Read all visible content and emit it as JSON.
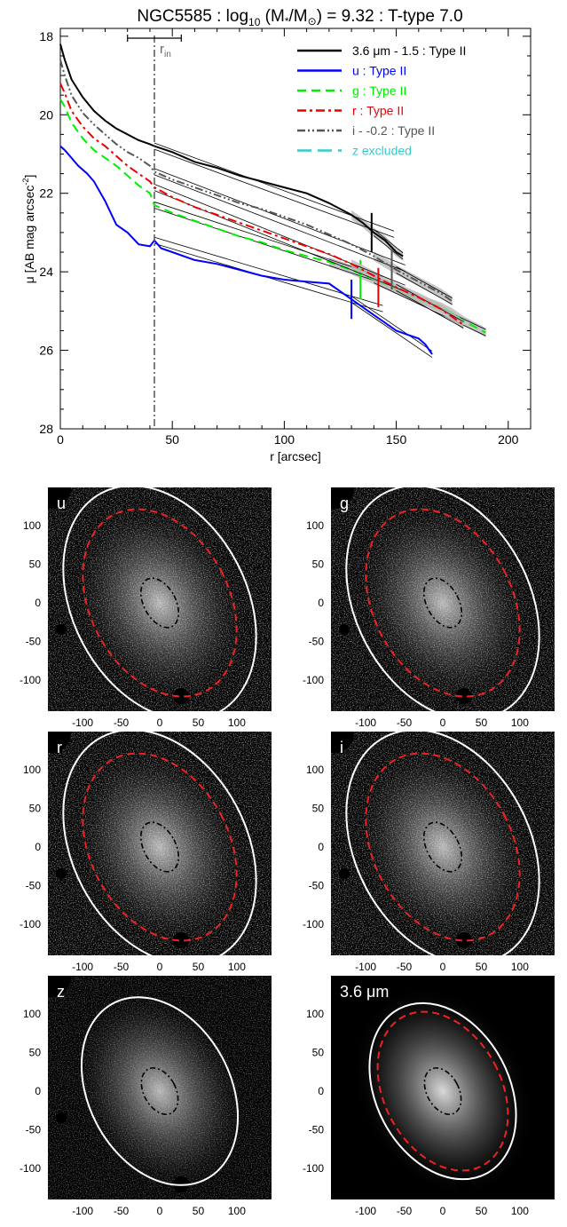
{
  "chart_data": [
    {
      "type": "line",
      "title": "NGC5585 : log",
      "title_sub": "10",
      "title_mid": " (M",
      "title_star": "*",
      "title_slash": "/M",
      "title_sun": "⊙",
      "title_tail": ") = 9.32 : T-type 7.0",
      "xlabel": "r [arcsec]",
      "ylabel": "μ [AB mag arcsec",
      "ylabel_sup": "-2",
      "ylabel_tail": "]",
      "xlim": [
        0,
        210
      ],
      "ylim": [
        28,
        17.8
      ],
      "y_inverted": true,
      "xticks": [
        0,
        50,
        100,
        150,
        200
      ],
      "yticks": [
        18,
        20,
        22,
        24,
        26,
        28
      ],
      "grid": false,
      "legend_position": "top-right",
      "r_in": 42,
      "r_in_label": "r",
      "r_in_sub": "in",
      "r_in_errbar": [
        30,
        54
      ],
      "series": [
        {
          "name": "3.6 μm - 1.5 : Type II",
          "color": "#000000",
          "dash": "solid",
          "break_r": 139,
          "x": [
            0,
            2,
            5,
            10,
            15,
            20,
            25,
            30,
            35,
            40,
            42,
            50,
            60,
            70,
            80,
            90,
            100,
            110,
            120,
            130,
            135,
            140,
            145,
            150,
            153
          ],
          "y": [
            18.2,
            18.6,
            19.1,
            19.55,
            19.9,
            20.15,
            20.35,
            20.5,
            20.65,
            20.75,
            20.8,
            20.95,
            21.2,
            21.35,
            21.55,
            21.7,
            21.85,
            22.0,
            22.25,
            22.55,
            22.75,
            23.0,
            23.2,
            23.5,
            23.6
          ]
        },
        {
          "name": "u : Type II",
          "color": "#0000ff",
          "dash": "solid",
          "break_r": 130,
          "x": [
            0,
            2,
            5,
            8,
            12,
            15,
            20,
            25,
            30,
            35,
            40,
            42,
            45,
            50,
            60,
            70,
            80,
            90,
            100,
            110,
            120,
            125,
            130,
            135,
            140,
            145,
            150,
            155,
            160,
            163,
            166
          ],
          "y": [
            20.8,
            20.9,
            21.1,
            21.3,
            21.5,
            21.7,
            22.2,
            22.8,
            23.0,
            23.3,
            23.35,
            23.2,
            23.4,
            23.5,
            23.7,
            23.8,
            23.95,
            24.1,
            24.2,
            24.25,
            24.3,
            24.5,
            24.7,
            24.9,
            25.1,
            25.3,
            25.5,
            25.6,
            25.7,
            25.85,
            26.1
          ]
        },
        {
          "name": "g : Type II",
          "color": "#00ee00",
          "dash": "dashed",
          "break_r": 134,
          "x": [
            0,
            2,
            5,
            10,
            15,
            20,
            25,
            30,
            35,
            40,
            42,
            50,
            60,
            70,
            80,
            90,
            100,
            110,
            120,
            130,
            140,
            150,
            160,
            170,
            175,
            180,
            185,
            190
          ],
          "y": [
            19.6,
            19.8,
            20.2,
            20.6,
            20.9,
            21.1,
            21.3,
            21.55,
            21.8,
            22.0,
            22.3,
            22.5,
            22.7,
            22.9,
            23.1,
            23.25,
            23.45,
            23.6,
            23.75,
            23.95,
            24.2,
            24.45,
            24.7,
            24.9,
            25.05,
            25.25,
            25.4,
            25.55
          ]
        },
        {
          "name": "r : Type II",
          "color": "#ee0000",
          "dash": "dashdot",
          "break_r": 142,
          "x": [
            0,
            2,
            5,
            10,
            15,
            20,
            25,
            30,
            35,
            40,
            42,
            50,
            60,
            70,
            80,
            90,
            100,
            110,
            120,
            130,
            140,
            150,
            160,
            170,
            175,
            180
          ],
          "y": [
            19.2,
            19.45,
            19.9,
            20.3,
            20.6,
            20.8,
            21.05,
            21.3,
            21.5,
            21.7,
            21.85,
            22.1,
            22.35,
            22.55,
            22.75,
            22.95,
            23.15,
            23.35,
            23.55,
            23.8,
            24.1,
            24.4,
            24.65,
            24.95,
            25.15,
            25.35
          ]
        },
        {
          "name": "i - -0.2 : Type II",
          "color": "#555555",
          "dash": "dashdotdot",
          "break_r": 148,
          "x": [
            0,
            2,
            5,
            10,
            15,
            20,
            25,
            30,
            35,
            40,
            42,
            50,
            60,
            70,
            80,
            90,
            100,
            110,
            120,
            130,
            140,
            150,
            160,
            170,
            175
          ],
          "y": [
            18.6,
            19.0,
            19.5,
            19.95,
            20.25,
            20.5,
            20.75,
            20.95,
            21.1,
            21.3,
            21.45,
            21.65,
            21.85,
            22.05,
            22.25,
            22.4,
            22.6,
            22.8,
            23.05,
            23.3,
            23.6,
            23.95,
            24.25,
            24.55,
            24.75
          ]
        },
        {
          "name": "z excluded",
          "color": "#33cccc",
          "dash": "longdash",
          "x": [],
          "y": []
        }
      ]
    },
    {
      "type": "image-panels",
      "ticks": [
        -100,
        -50,
        0,
        50,
        100
      ],
      "panels": [
        {
          "label": "u"
        },
        {
          "label": "g"
        },
        {
          "label": "r"
        },
        {
          "label": "i"
        },
        {
          "label": "z"
        },
        {
          "label": "3.6 μm"
        }
      ]
    }
  ]
}
